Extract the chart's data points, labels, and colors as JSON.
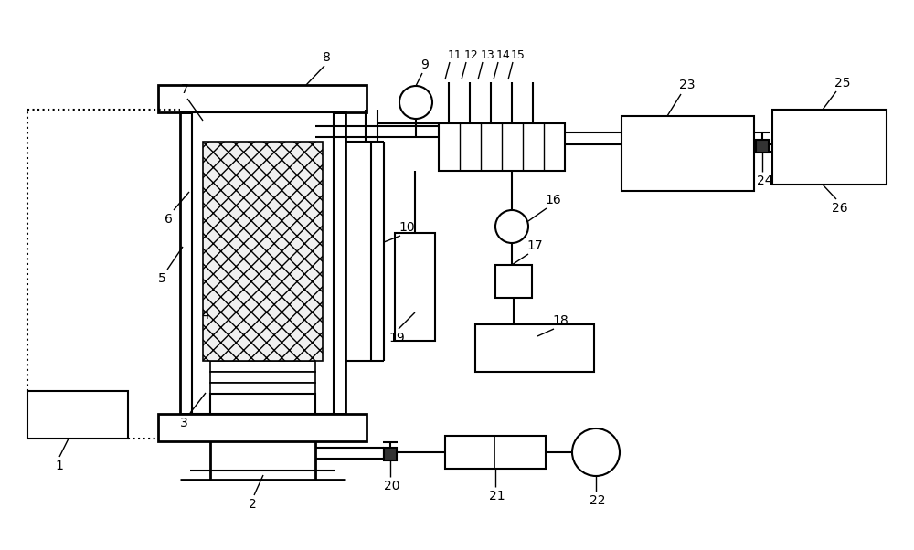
{
  "bg": "#ffffff",
  "lc": "#000000",
  "fw": 10.0,
  "fh": 6.02,
  "dpi": 100
}
